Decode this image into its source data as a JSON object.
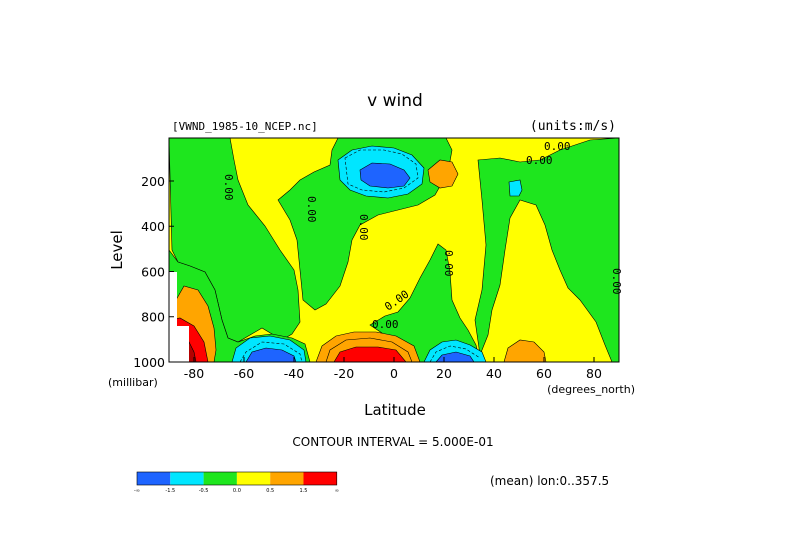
{
  "chart_data": {
    "type": "heatmap",
    "title": "v wind",
    "subtitle_left": "[VWND_1985-10_NCEP.nc]",
    "units": "(units:m/s)",
    "xlabel": "Latitude",
    "x_units": "(degrees_north)",
    "ylabel": "Level",
    "y_units": "(millibar)",
    "xlim": [
      -90,
      90
    ],
    "ylim": [
      1000,
      10
    ],
    "x_ticks": [
      -80,
      -60,
      -40,
      -20,
      0,
      20,
      40,
      60,
      80
    ],
    "x_tick_labels": [
      "-80",
      "-60",
      "-40",
      "-20",
      "0",
      "20",
      "40",
      "60",
      "80"
    ],
    "y_ticks": [
      200,
      400,
      600,
      800,
      1000
    ],
    "y_tick_labels": [
      "200",
      "400",
      "600",
      "800",
      "1000"
    ],
    "contour_interval_text": "CONTOUR INTERVAL = 5.000E-01",
    "mean_text": "(mean) lon:0..357.5",
    "contour_labels": [
      "0.00",
      "0.00",
      "0.00",
      "0.00",
      "0.00",
      "0.00",
      "0.00",
      "0.00",
      "0.00"
    ],
    "colorbar": {
      "colors": [
        "#1e64ff",
        "#00e6ff",
        "#1ee61e",
        "#ffff00",
        "#ffa500",
        "#ff0000"
      ],
      "labels": [
        "-∞",
        "-1.5",
        "-0.5",
        "0.0",
        "0.5",
        "1.5",
        "∞"
      ]
    },
    "field_regions": [
      {
        "level": "positive",
        "lat_range": [
          -60,
          -20
        ],
        "p_range": [
          10,
          400
        ]
      },
      {
        "level": "positive",
        "lat_range": [
          -10,
          40
        ],
        "p_range": [
          10,
          1000
        ]
      },
      {
        "level": "negative",
        "lat_range": [
          -86,
          -56
        ],
        "p_range": [
          100,
          560
        ]
      },
      {
        "level": "negative",
        "lat_range": [
          -40,
          -12
        ],
        "p_range": [
          400,
          1000
        ]
      },
      {
        "level": "negative",
        "lat_range": [
          30,
          90
        ],
        "p_range": [
          100,
          800
        ]
      },
      {
        "level": "min",
        "lat_range": [
          -20,
          10
        ],
        "p_range": [
          100,
          240
        ],
        "value": -1.5
      },
      {
        "level": "min",
        "lat_range": [
          -64,
          -46
        ],
        "p_range": [
          940,
          1000
        ],
        "value": -1.5
      },
      {
        "level": "min",
        "lat_range": [
          14,
          28
        ],
        "p_range": [
          930,
          1000
        ],
        "value": -1.0
      },
      {
        "level": "min",
        "lat_range": [
          46,
          52
        ],
        "p_range": [
          200,
          250
        ],
        "value": -1.0
      },
      {
        "level": "max",
        "lat_range": [
          -20,
          0
        ],
        "p_range": [
          920,
          1000
        ],
        "value": 2.0
      },
      {
        "level": "max",
        "lat_range": [
          -90,
          -80
        ],
        "p_range": [
          720,
          1000
        ],
        "value": 2.0
      },
      {
        "level": "max",
        "lat_range": [
          12,
          22
        ],
        "p_range": [
          100,
          200
        ],
        "value": 1.0
      },
      {
        "level": "max",
        "lat_range": [
          44,
          58
        ],
        "p_range": [
          930,
          1000
        ],
        "value": 1.0
      }
    ]
  }
}
